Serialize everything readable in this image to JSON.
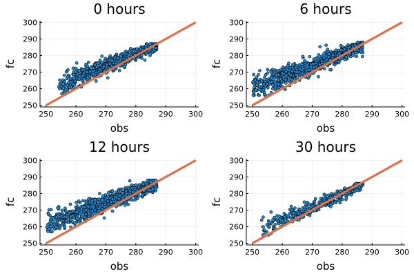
{
  "chart_data": [
    {
      "type": "scatter",
      "title": "0 hours",
      "xlabel": "obs",
      "ylabel": "fc",
      "xlim": [
        248,
        301
      ],
      "ylim": [
        249,
        301
      ],
      "xticks": [
        250,
        260,
        270,
        280,
        290,
        300
      ],
      "yticks": [
        250,
        260,
        270,
        280,
        290,
        300
      ],
      "grid": true,
      "scatter_color": "#1f8fd6",
      "line_color": "#e26f46",
      "series": [
        {
          "kind": "points",
          "x_range": [
            254,
            287
          ],
          "y_range": [
            257,
            287
          ],
          "fc_at_obs_min": 262,
          "fc_at_obs_max": 286,
          "spread": 2.5,
          "count": 700
        },
        {
          "kind": "line",
          "x": [
            250,
            300
          ],
          "y": [
            250,
            300
          ]
        }
      ]
    },
    {
      "type": "scatter",
      "title": "6 hours",
      "xlabel": "obs",
      "ylabel": "fc",
      "xlim": [
        248,
        301
      ],
      "ylim": [
        249,
        301
      ],
      "xticks": [
        250,
        260,
        270,
        280,
        290,
        300
      ],
      "yticks": [
        250,
        260,
        270,
        280,
        290,
        300
      ],
      "grid": true,
      "scatter_color": "#1f8fd6",
      "line_color": "#e26f46",
      "series": [
        {
          "kind": "points",
          "x_range": [
            250,
            287
          ],
          "y_range": [
            256,
            288
          ],
          "fc_at_obs_min": 260,
          "fc_at_obs_max": 286,
          "spread": 3,
          "count": 900
        },
        {
          "kind": "line",
          "x": [
            250,
            300
          ],
          "y": [
            250,
            300
          ]
        }
      ]
    },
    {
      "type": "scatter",
      "title": "12 hours",
      "xlabel": "obs",
      "ylabel": "fc",
      "xlim": [
        248,
        301
      ],
      "ylim": [
        249,
        301
      ],
      "xticks": [
        250,
        260,
        270,
        280,
        290,
        300
      ],
      "yticks": [
        250,
        260,
        270,
        280,
        290,
        300
      ],
      "grid": true,
      "scatter_color": "#1f8fd6",
      "line_color": "#e26f46",
      "series": [
        {
          "kind": "points",
          "x_range": [
            250,
            287
          ],
          "y_range": [
            257,
            288
          ],
          "fc_at_obs_min": 261,
          "fc_at_obs_max": 286,
          "spread": 3,
          "count": 900
        },
        {
          "kind": "line",
          "x": [
            250,
            300
          ],
          "y": [
            250,
            300
          ]
        }
      ]
    },
    {
      "type": "scatter",
      "title": "30 hours",
      "xlabel": "obs",
      "ylabel": "fc",
      "xlim": [
        248,
        301
      ],
      "ylim": [
        249,
        301
      ],
      "xticks": [
        250,
        260,
        270,
        280,
        290,
        300
      ],
      "yticks": [
        250,
        260,
        270,
        280,
        290,
        300
      ],
      "grid": true,
      "scatter_color": "#1f8fd6",
      "line_color": "#e26f46",
      "series": [
        {
          "kind": "points",
          "x_range": [
            253,
            287
          ],
          "y_range": [
            255,
            286
          ],
          "fc_at_obs_min": 259,
          "fc_at_obs_max": 285,
          "spread": 2.5,
          "count": 380
        },
        {
          "kind": "line",
          "x": [
            250,
            300
          ],
          "y": [
            250,
            300
          ]
        }
      ]
    }
  ]
}
